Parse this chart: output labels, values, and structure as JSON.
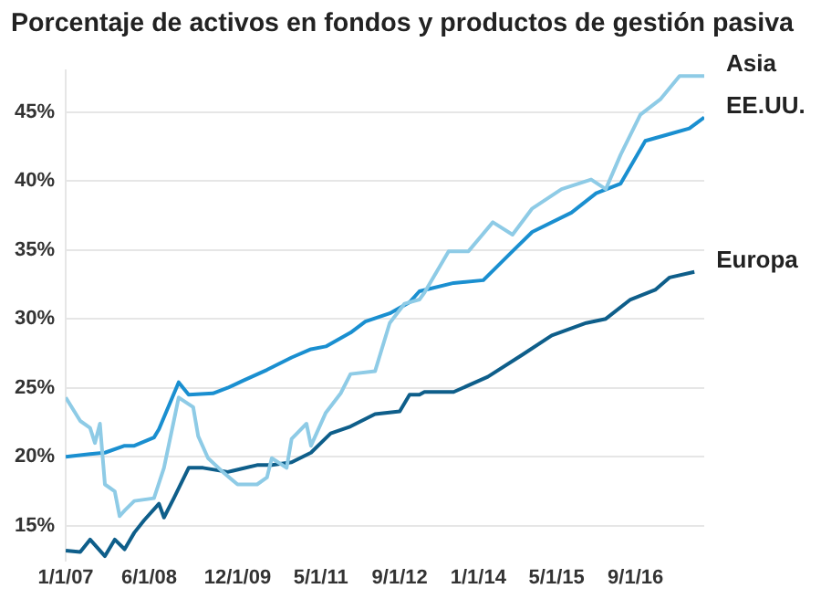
{
  "chart_data": {
    "type": "line",
    "title": "Porcentaje de activos en fondos y productos de gestión pasiva",
    "ylim": [
      12.5,
      48
    ],
    "yticks": [
      {
        "value": 15,
        "label": "15%"
      },
      {
        "value": 20,
        "label": "20%"
      },
      {
        "value": 25,
        "label": "25%"
      },
      {
        "value": 30,
        "label": "30%"
      },
      {
        "value": 35,
        "label": "35%"
      },
      {
        "value": 40,
        "label": "40%"
      },
      {
        "value": 45,
        "label": "45%"
      }
    ],
    "xlim": [
      "2007-01",
      "2017-11"
    ],
    "xticks": [
      {
        "value": "2007-01-01",
        "label": "1/1/07"
      },
      {
        "value": "2008-06-01",
        "label": "6/1/08"
      },
      {
        "value": "2009-12-01",
        "label": "12/1/09"
      },
      {
        "value": "2011-05-01",
        "label": "5/1/11"
      },
      {
        "value": "2012-09-01",
        "label": "9/1/12"
      },
      {
        "value": "2014-01-01",
        "label": "1/1/14"
      },
      {
        "value": "2015-05-01",
        "label": "5/1/15"
      },
      {
        "value": "2016-09-01",
        "label": "9/1/16"
      }
    ],
    "grid": "y",
    "legend": false,
    "marker": "none",
    "line_style": "solid",
    "series": [
      {
        "name": "Asia",
        "color": "#8ecbe6",
        "x": [
          "2007-01",
          "2007-04",
          "2007-06",
          "2007-07",
          "2007-08",
          "2007-09",
          "2007-11",
          "2007-12",
          "2008-01",
          "2008-03",
          "2008-07",
          "2008-09",
          "2008-11",
          "2008-12",
          "2009-03",
          "2009-04",
          "2009-06",
          "2009-09",
          "2009-12",
          "2010-04",
          "2010-06",
          "2010-07",
          "2010-10",
          "2010-11",
          "2011-02",
          "2011-03",
          "2011-06",
          "2011-09",
          "2011-11",
          "2012-04",
          "2012-07",
          "2012-10",
          "2013-01",
          "2013-02",
          "2013-07",
          "2013-11",
          "2014-04",
          "2014-08",
          "2014-12",
          "2015-06",
          "2015-12",
          "2016-03",
          "2016-06",
          "2016-10",
          "2017-02",
          "2017-06",
          "2017-09",
          "2017-11"
        ],
        "values": [
          24.3,
          22.6,
          22.1,
          21.0,
          22.4,
          18.0,
          17.5,
          15.7,
          16.1,
          16.8,
          17.0,
          19.2,
          22.6,
          24.3,
          23.6,
          21.5,
          19.9,
          18.9,
          18.0,
          18.0,
          18.5,
          19.9,
          19.2,
          21.3,
          22.4,
          20.8,
          23.2,
          24.6,
          26.0,
          26.2,
          29.7,
          31.1,
          31.4,
          31.9,
          34.9,
          34.9,
          37.0,
          36.1,
          38.0,
          39.4,
          40.1,
          39.4,
          41.9,
          44.8,
          45.9,
          47.6,
          47.6,
          47.6
        ]
      },
      {
        "name": "EE.UU.",
        "color": "#1a8fd0",
        "x": [
          "2007-01",
          "2007-06",
          "2007-09",
          "2008-01",
          "2008-03",
          "2008-07",
          "2008-08",
          "2008-12",
          "2009-02",
          "2009-07",
          "2009-10",
          "2010-01",
          "2010-06",
          "2010-11",
          "2011-03",
          "2011-06",
          "2011-11",
          "2012-02",
          "2012-07",
          "2012-11",
          "2013-01",
          "2013-08",
          "2014-02",
          "2014-08",
          "2014-12",
          "2015-08",
          "2016-01",
          "2016-06",
          "2016-11",
          "2017-04",
          "2017-08",
          "2017-11"
        ],
        "values": [
          20.0,
          20.2,
          20.3,
          20.8,
          20.8,
          21.4,
          22.0,
          25.4,
          24.5,
          24.6,
          25.0,
          25.5,
          26.3,
          27.2,
          27.8,
          28.0,
          29.0,
          29.8,
          30.4,
          31.2,
          32.0,
          32.6,
          32.8,
          34.9,
          36.3,
          37.7,
          39.1,
          39.8,
          42.9,
          43.4,
          43.8,
          44.6
        ]
      },
      {
        "name": "Europa",
        "color": "#0e5e8a",
        "x": [
          "2007-01",
          "2007-04",
          "2007-06",
          "2007-09",
          "2007-11",
          "2008-01",
          "2008-03",
          "2008-05",
          "2008-08",
          "2008-09",
          "2008-11",
          "2009-02",
          "2009-05",
          "2009-10",
          "2010-04",
          "2010-07",
          "2010-11",
          "2011-03",
          "2011-07",
          "2011-11",
          "2012-04",
          "2012-09",
          "2012-11",
          "2013-01",
          "2013-02",
          "2013-08",
          "2014-03",
          "2014-10",
          "2015-04",
          "2015-11",
          "2016-03",
          "2016-08",
          "2017-01",
          "2017-04",
          "2017-09"
        ],
        "values": [
          13.2,
          13.1,
          14.0,
          12.8,
          14.0,
          13.3,
          14.5,
          15.4,
          16.6,
          15.6,
          17.0,
          19.2,
          19.2,
          18.9,
          19.4,
          19.4,
          19.6,
          20.3,
          21.7,
          22.2,
          23.1,
          23.3,
          24.5,
          24.5,
          24.7,
          24.7,
          25.8,
          27.4,
          28.8,
          29.7,
          30.0,
          31.4,
          32.1,
          33.0,
          33.4
        ]
      }
    ]
  }
}
